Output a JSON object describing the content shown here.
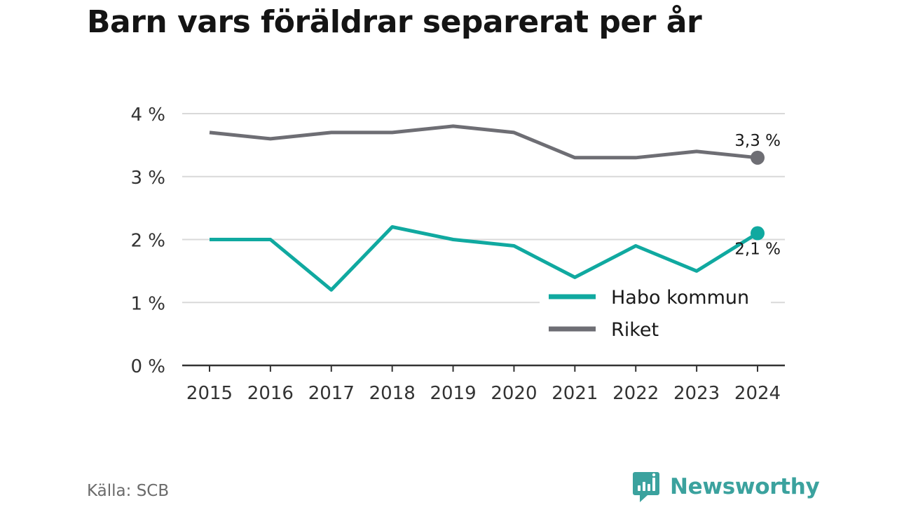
{
  "title": "Barn vars föräldrar separerat per år",
  "source": "Källa: SCB",
  "brand": {
    "name": "Newsworthy",
    "icon": "newsworthy-logo-icon",
    "color": "#3ba29e"
  },
  "colors": {
    "habo": "#10a9a0",
    "riket": "#6e6e74",
    "grid": "#d9d9d9",
    "axis": "#333333"
  },
  "chart_data": {
    "type": "line",
    "title": "Barn vars föräldrar separerat per år",
    "xlabel": "",
    "ylabel": "",
    "x": [
      "2015",
      "2016",
      "2017",
      "2018",
      "2019",
      "2020",
      "2021",
      "2022",
      "2023",
      "2024"
    ],
    "ylim": [
      0,
      4
    ],
    "yticks": [
      0,
      1,
      2,
      3,
      4
    ],
    "ytick_labels": [
      "0 %",
      "1 %",
      "2 %",
      "3 %",
      "4 %"
    ],
    "grid": true,
    "legend_position": "lower-right",
    "series": [
      {
        "name": "Habo kommun",
        "color": "#10a9a0",
        "values": [
          2.0,
          2.0,
          1.2,
          2.2,
          2.0,
          1.9,
          1.4,
          1.9,
          1.5,
          2.1
        ],
        "end_label": "2,1 %"
      },
      {
        "name": "Riket",
        "color": "#6e6e74",
        "values": [
          3.7,
          3.6,
          3.7,
          3.7,
          3.8,
          3.7,
          3.3,
          3.3,
          3.4,
          3.3
        ],
        "end_label": "3,3 %"
      }
    ]
  }
}
